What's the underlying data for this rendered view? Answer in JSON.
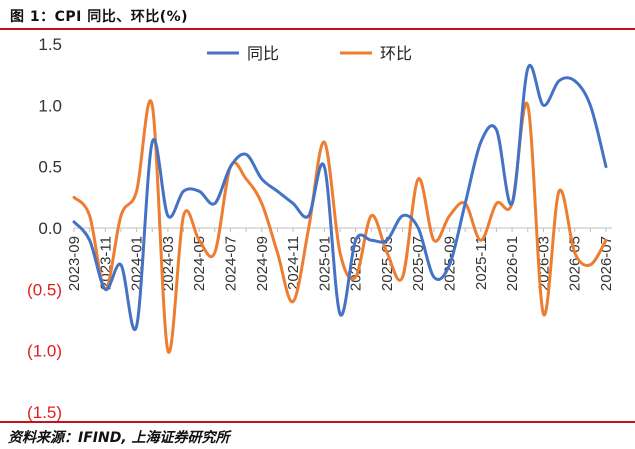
{
  "header": {
    "title": "图 1：CPI 同比、环比(%)"
  },
  "footer": {
    "source": "资料来源：IFIND, 上海证券研究所"
  },
  "colors": {
    "rule": "#c0141b",
    "yoy": "#4472c4",
    "mom": "#ed7d31",
    "negative_tick": "#e02020",
    "positive_tick": "#333333"
  },
  "chart_data": {
    "type": "line",
    "title": "",
    "xlabel": "",
    "ylabel": "",
    "ylim": [
      -1.5,
      1.5
    ],
    "yticks": [
      {
        "value": 1.5,
        "label": "1.5"
      },
      {
        "value": 1.0,
        "label": "1.0"
      },
      {
        "value": 0.5,
        "label": "0.5"
      },
      {
        "value": 0.0,
        "label": "0.0"
      },
      {
        "value": -0.5,
        "label": "(0.5)"
      },
      {
        "value": -1.0,
        "label": "(1.0)"
      },
      {
        "value": -1.5,
        "label": "(1.5)"
      }
    ],
    "x": [
      "2023-09",
      "2023-10",
      "2023-11",
      "2023-12",
      "2024-01",
      "2024-02",
      "2024-03",
      "2024-04",
      "2024-05",
      "2024-06",
      "2024-07",
      "2024-08",
      "2024-09",
      "2024-10",
      "2024-11",
      "2024-12",
      "2025-01",
      "2025-02",
      "2025-03",
      "2025-04",
      "2025-05",
      "2025-06",
      "2025-07",
      "2025-08",
      "2025-09",
      "2025-10",
      "2025-11",
      "2025-12",
      "2026-01",
      "2026-02",
      "2026-03",
      "2026-04",
      "2026-05",
      "2026-06",
      "2026-07"
    ],
    "xtick_labels": [
      "2023-09",
      "2023-11",
      "2024-01",
      "2024-03",
      "2024-05",
      "2024-07",
      "2024-09",
      "2024-11",
      "2025-01",
      "2025-03",
      "2025-05",
      "2025-07",
      "2025-09",
      "2025-11",
      "2026-01",
      "2026-03",
      "2026-05",
      "2026-07"
    ],
    "legend_position": "top",
    "grid": false,
    "series": [
      {
        "name": "同比",
        "color": "#4472c4",
        "values": [
          0.05,
          -0.1,
          -0.5,
          -0.3,
          -0.8,
          0.7,
          0.1,
          0.3,
          0.3,
          0.2,
          0.5,
          0.6,
          0.4,
          0.3,
          0.2,
          0.1,
          0.5,
          -0.7,
          -0.1,
          -0.1,
          -0.1,
          0.1,
          0.0,
          -0.4,
          -0.3,
          0.2,
          0.7,
          0.8,
          0.2,
          1.3,
          1.0,
          1.2,
          1.2,
          1.0,
          0.5
        ]
      },
      {
        "name": "环比",
        "color": "#ed7d31",
        "values": [
          0.25,
          0.1,
          -0.5,
          0.1,
          0.3,
          1.0,
          -1.0,
          0.1,
          -0.1,
          -0.2,
          0.5,
          0.4,
          0.2,
          -0.2,
          -0.6,
          0.0,
          0.7,
          -0.2,
          -0.4,
          0.1,
          -0.2,
          -0.4,
          0.4,
          -0.1,
          0.1,
          0.2,
          -0.1,
          0.2,
          0.2,
          1.0,
          -0.7,
          0.3,
          -0.2,
          -0.3,
          -0.1
        ]
      }
    ]
  }
}
